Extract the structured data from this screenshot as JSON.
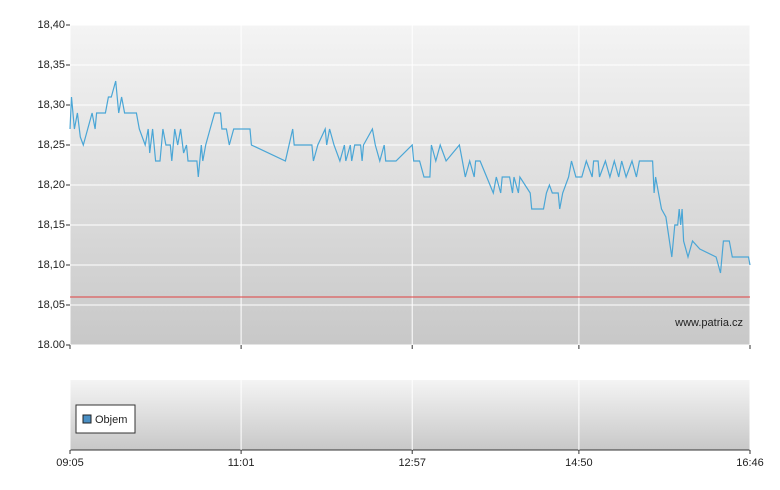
{
  "chart_data": {
    "type": "line",
    "source": "www.patria.cz",
    "x": [
      "09:05",
      "09:06",
      "09:08",
      "09:10",
      "09:12",
      "09:14",
      "09:17",
      "09:20",
      "09:22",
      "09:23",
      "09:29",
      "09:31",
      "09:33",
      "09:36",
      "09:38",
      "09:40",
      "09:42",
      "09:50",
      "09:52",
      "09:56",
      "09:58",
      "09:59",
      "10:01",
      "10:03",
      "10:06",
      "10:08",
      "10:10",
      "10:13",
      "10:14",
      "10:16",
      "10:18",
      "10:20",
      "10:22",
      "10:24",
      "10:25",
      "10:31",
      "10:32",
      "10:34",
      "10:35",
      "10:37",
      "10:40",
      "10:43",
      "10:47",
      "10:48",
      "10:51",
      "10:53",
      "10:56",
      "11:07",
      "11:08",
      "11:31",
      "11:36",
      "11:37",
      "11:49",
      "11:50",
      "11:53",
      "11:58",
      "11:59",
      "12:01",
      "12:04",
      "12:08",
      "12:11",
      "12:12",
      "12:15",
      "12:16",
      "12:18",
      "12:22",
      "12:23",
      "12:24",
      "12:30",
      "12:32",
      "12:35",
      "12:38",
      "12:39",
      "12:46",
      "12:57",
      "12:58",
      "13:02",
      "13:05",
      "13:09",
      "13:10",
      "13:13",
      "13:16",
      "13:20",
      "13:29",
      "13:31",
      "13:33",
      "13:36",
      "13:39",
      "13:40",
      "13:43",
      "13:52",
      "13:54",
      "13:57",
      "13:58",
      "14:03",
      "14:05",
      "14:06",
      "14:09",
      "14:10",
      "14:17",
      "14:18",
      "14:26",
      "14:28",
      "14:30",
      "14:32",
      "14:36",
      "14:37",
      "14:39",
      "14:43",
      "14:45",
      "14:48",
      "14:52",
      "14:55",
      "14:59",
      "15:00",
      "15:03",
      "15:04",
      "15:08",
      "15:11",
      "15:14",
      "15:17",
      "15:19",
      "15:22",
      "15:26",
      "15:29",
      "15:31",
      "15:40",
      "15:41",
      "15:42",
      "15:44",
      "15:46",
      "15:49",
      "15:53",
      "15:55",
      "15:57",
      "15:58",
      "15:59",
      "16:00",
      "16:01",
      "16:04",
      "16:07",
      "16:12",
      "16:23",
      "16:26",
      "16:28",
      "16:32",
      "16:34",
      "16:45",
      "16:46"
    ],
    "values": [
      18.27,
      18.31,
      18.27,
      18.29,
      18.26,
      18.25,
      18.27,
      18.29,
      18.27,
      18.29,
      18.29,
      18.31,
      18.31,
      18.33,
      18.29,
      18.31,
      18.29,
      18.29,
      18.27,
      18.25,
      18.27,
      18.24,
      18.27,
      18.23,
      18.23,
      18.27,
      18.25,
      18.25,
      18.23,
      18.27,
      18.25,
      18.27,
      18.24,
      18.25,
      18.23,
      18.23,
      18.21,
      18.25,
      18.23,
      18.25,
      18.27,
      18.29,
      18.29,
      18.27,
      18.27,
      18.25,
      18.27,
      18.27,
      18.25,
      18.23,
      18.27,
      18.25,
      18.25,
      18.23,
      18.25,
      18.27,
      18.25,
      18.27,
      18.25,
      18.23,
      18.25,
      18.23,
      18.25,
      18.23,
      18.25,
      18.25,
      18.23,
      18.25,
      18.27,
      18.25,
      18.23,
      18.25,
      18.23,
      18.23,
      18.25,
      18.23,
      18.23,
      18.21,
      18.21,
      18.25,
      18.23,
      18.25,
      18.23,
      18.25,
      18.23,
      18.21,
      18.23,
      18.21,
      18.23,
      18.23,
      18.19,
      18.21,
      18.19,
      18.21,
      18.21,
      18.19,
      18.21,
      18.19,
      18.21,
      18.19,
      18.17,
      18.17,
      18.19,
      18.2,
      18.19,
      18.19,
      18.17,
      18.19,
      18.21,
      18.23,
      18.21,
      18.21,
      18.23,
      18.21,
      18.23,
      18.23,
      18.21,
      18.23,
      18.21,
      18.23,
      18.21,
      18.23,
      18.21,
      18.23,
      18.21,
      18.23,
      18.23,
      18.19,
      18.21,
      18.19,
      18.17,
      18.16,
      18.11,
      18.15,
      18.15,
      18.17,
      18.15,
      18.17,
      18.13,
      18.11,
      18.13,
      18.12,
      18.11,
      18.09,
      18.13,
      18.13,
      18.11,
      18.11,
      18.1
    ],
    "color": "#4aa6d6",
    "reference_line": {
      "value": 18.06,
      "color": "#e04040"
    },
    "volume": {
      "name": "Objem",
      "color": "#4a8fc4"
    },
    "xlim": [
      "09:05",
      "16:46"
    ],
    "xticks": [
      "09:05",
      "11:01",
      "12:57",
      "14:50",
      "16:46"
    ],
    "ylim": [
      18.0,
      18.4
    ],
    "yticks": [
      {
        "value": 18.0,
        "label": "18.00"
      },
      {
        "value": 18.05,
        "label": "18,05"
      },
      {
        "value": 18.1,
        "label": "18,10"
      },
      {
        "value": 18.15,
        "label": "18,15"
      },
      {
        "value": 18.2,
        "label": "18,20"
      },
      {
        "value": 18.25,
        "label": "18,25"
      },
      {
        "value": 18.3,
        "label": "18,30"
      },
      {
        "value": 18.35,
        "label": "18,35"
      },
      {
        "value": 18.4,
        "label": "18,40"
      }
    ],
    "grid": true
  }
}
